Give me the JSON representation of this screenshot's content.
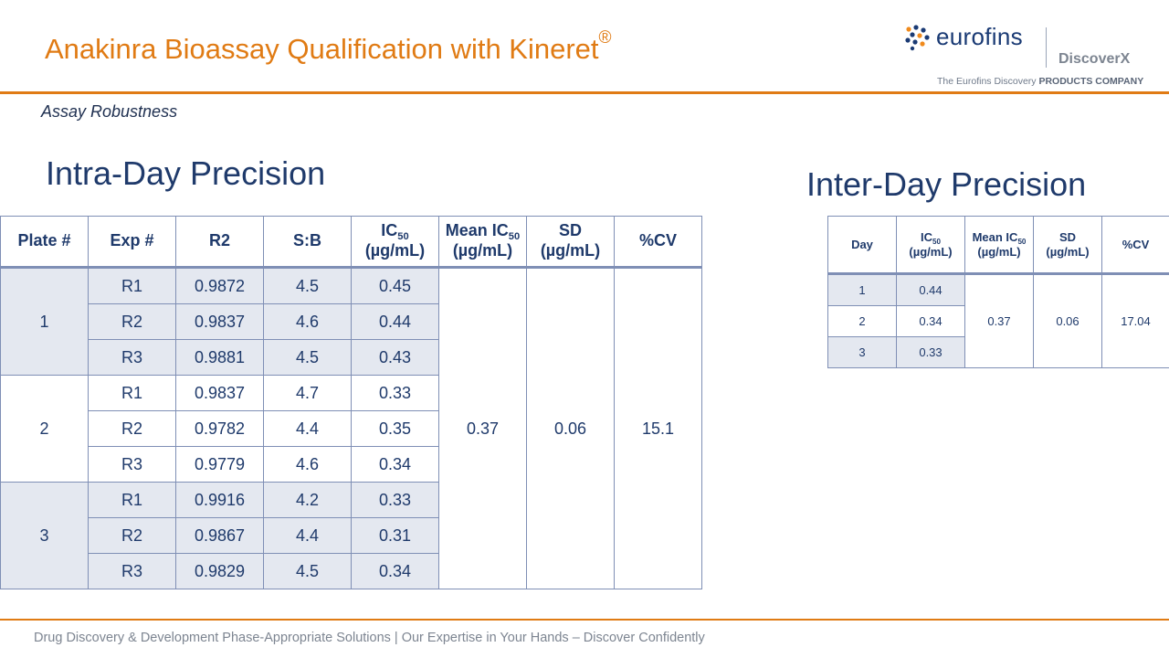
{
  "header": {
    "title": "Anakinra Bioassay Qualification with Kineret",
    "title_mark": "®",
    "subtitle": "Assay Robustness"
  },
  "logo": {
    "brand": "eurofins",
    "sub_brand": "DiscoverX",
    "tagline_prefix": "The Eurofins Discovery",
    "tagline_bold": "PRODUCTS COMPANY"
  },
  "intra_day": {
    "heading": "Intra-Day Precision",
    "headers": {
      "plate": "Plate #",
      "exp": "Exp #",
      "r2": "R2",
      "sb": "S:B",
      "ic50_prefix": "IC",
      "ic50_sub": "50",
      "unit": "(µg/mL)",
      "mean_prefix": "Mean IC",
      "mean_sub": "50",
      "sd": "SD",
      "cv": "%CV"
    },
    "plates": [
      {
        "plate": "1",
        "rows": [
          {
            "exp": "R1",
            "r2": "0.9872",
            "sb": "4.5",
            "ic50": "0.45"
          },
          {
            "exp": "R2",
            "r2": "0.9837",
            "sb": "4.6",
            "ic50": "0.44"
          },
          {
            "exp": "R3",
            "r2": "0.9881",
            "sb": "4.5",
            "ic50": "0.43"
          }
        ]
      },
      {
        "plate": "2",
        "rows": [
          {
            "exp": "R1",
            "r2": "0.9837",
            "sb": "4.7",
            "ic50": "0.33"
          },
          {
            "exp": "R2",
            "r2": "0.9782",
            "sb": "4.4",
            "ic50": "0.35"
          },
          {
            "exp": "R3",
            "r2": "0.9779",
            "sb": "4.6",
            "ic50": "0.34"
          }
        ]
      },
      {
        "plate": "3",
        "rows": [
          {
            "exp": "R1",
            "r2": "0.9916",
            "sb": "4.2",
            "ic50": "0.33"
          },
          {
            "exp": "R2",
            "r2": "0.9867",
            "sb": "4.4",
            "ic50": "0.31"
          },
          {
            "exp": "R3",
            "r2": "0.9829",
            "sb": "4.5",
            "ic50": "0.34"
          }
        ]
      }
    ],
    "mean_ic50": "0.37",
    "sd": "0.06",
    "cv": "15.1"
  },
  "inter_day": {
    "heading": "Inter-Day Precision",
    "headers": {
      "day": "Day",
      "ic50_prefix": "IC",
      "ic50_sub": "50",
      "unit": "(µg/mL)",
      "mean_prefix": "Mean  IC",
      "mean_sub": "50",
      "sd": "SD",
      "cv": "%CV"
    },
    "rows": [
      {
        "day": "1",
        "ic50": "0.44"
      },
      {
        "day": "2",
        "ic50": "0.34"
      },
      {
        "day": "3",
        "ic50": "0.33"
      }
    ],
    "mean_ic50": "0.37",
    "sd": "0.06",
    "cv": "17.04"
  },
  "footer": {
    "text": "Drug Discovery & Development Phase-Appropriate Solutions | Our Expertise in Your Hands – Discover Confidently"
  },
  "colors": {
    "accent": "#e07b14",
    "navy": "#1f3a6b",
    "shade": "#e4e8f0"
  }
}
